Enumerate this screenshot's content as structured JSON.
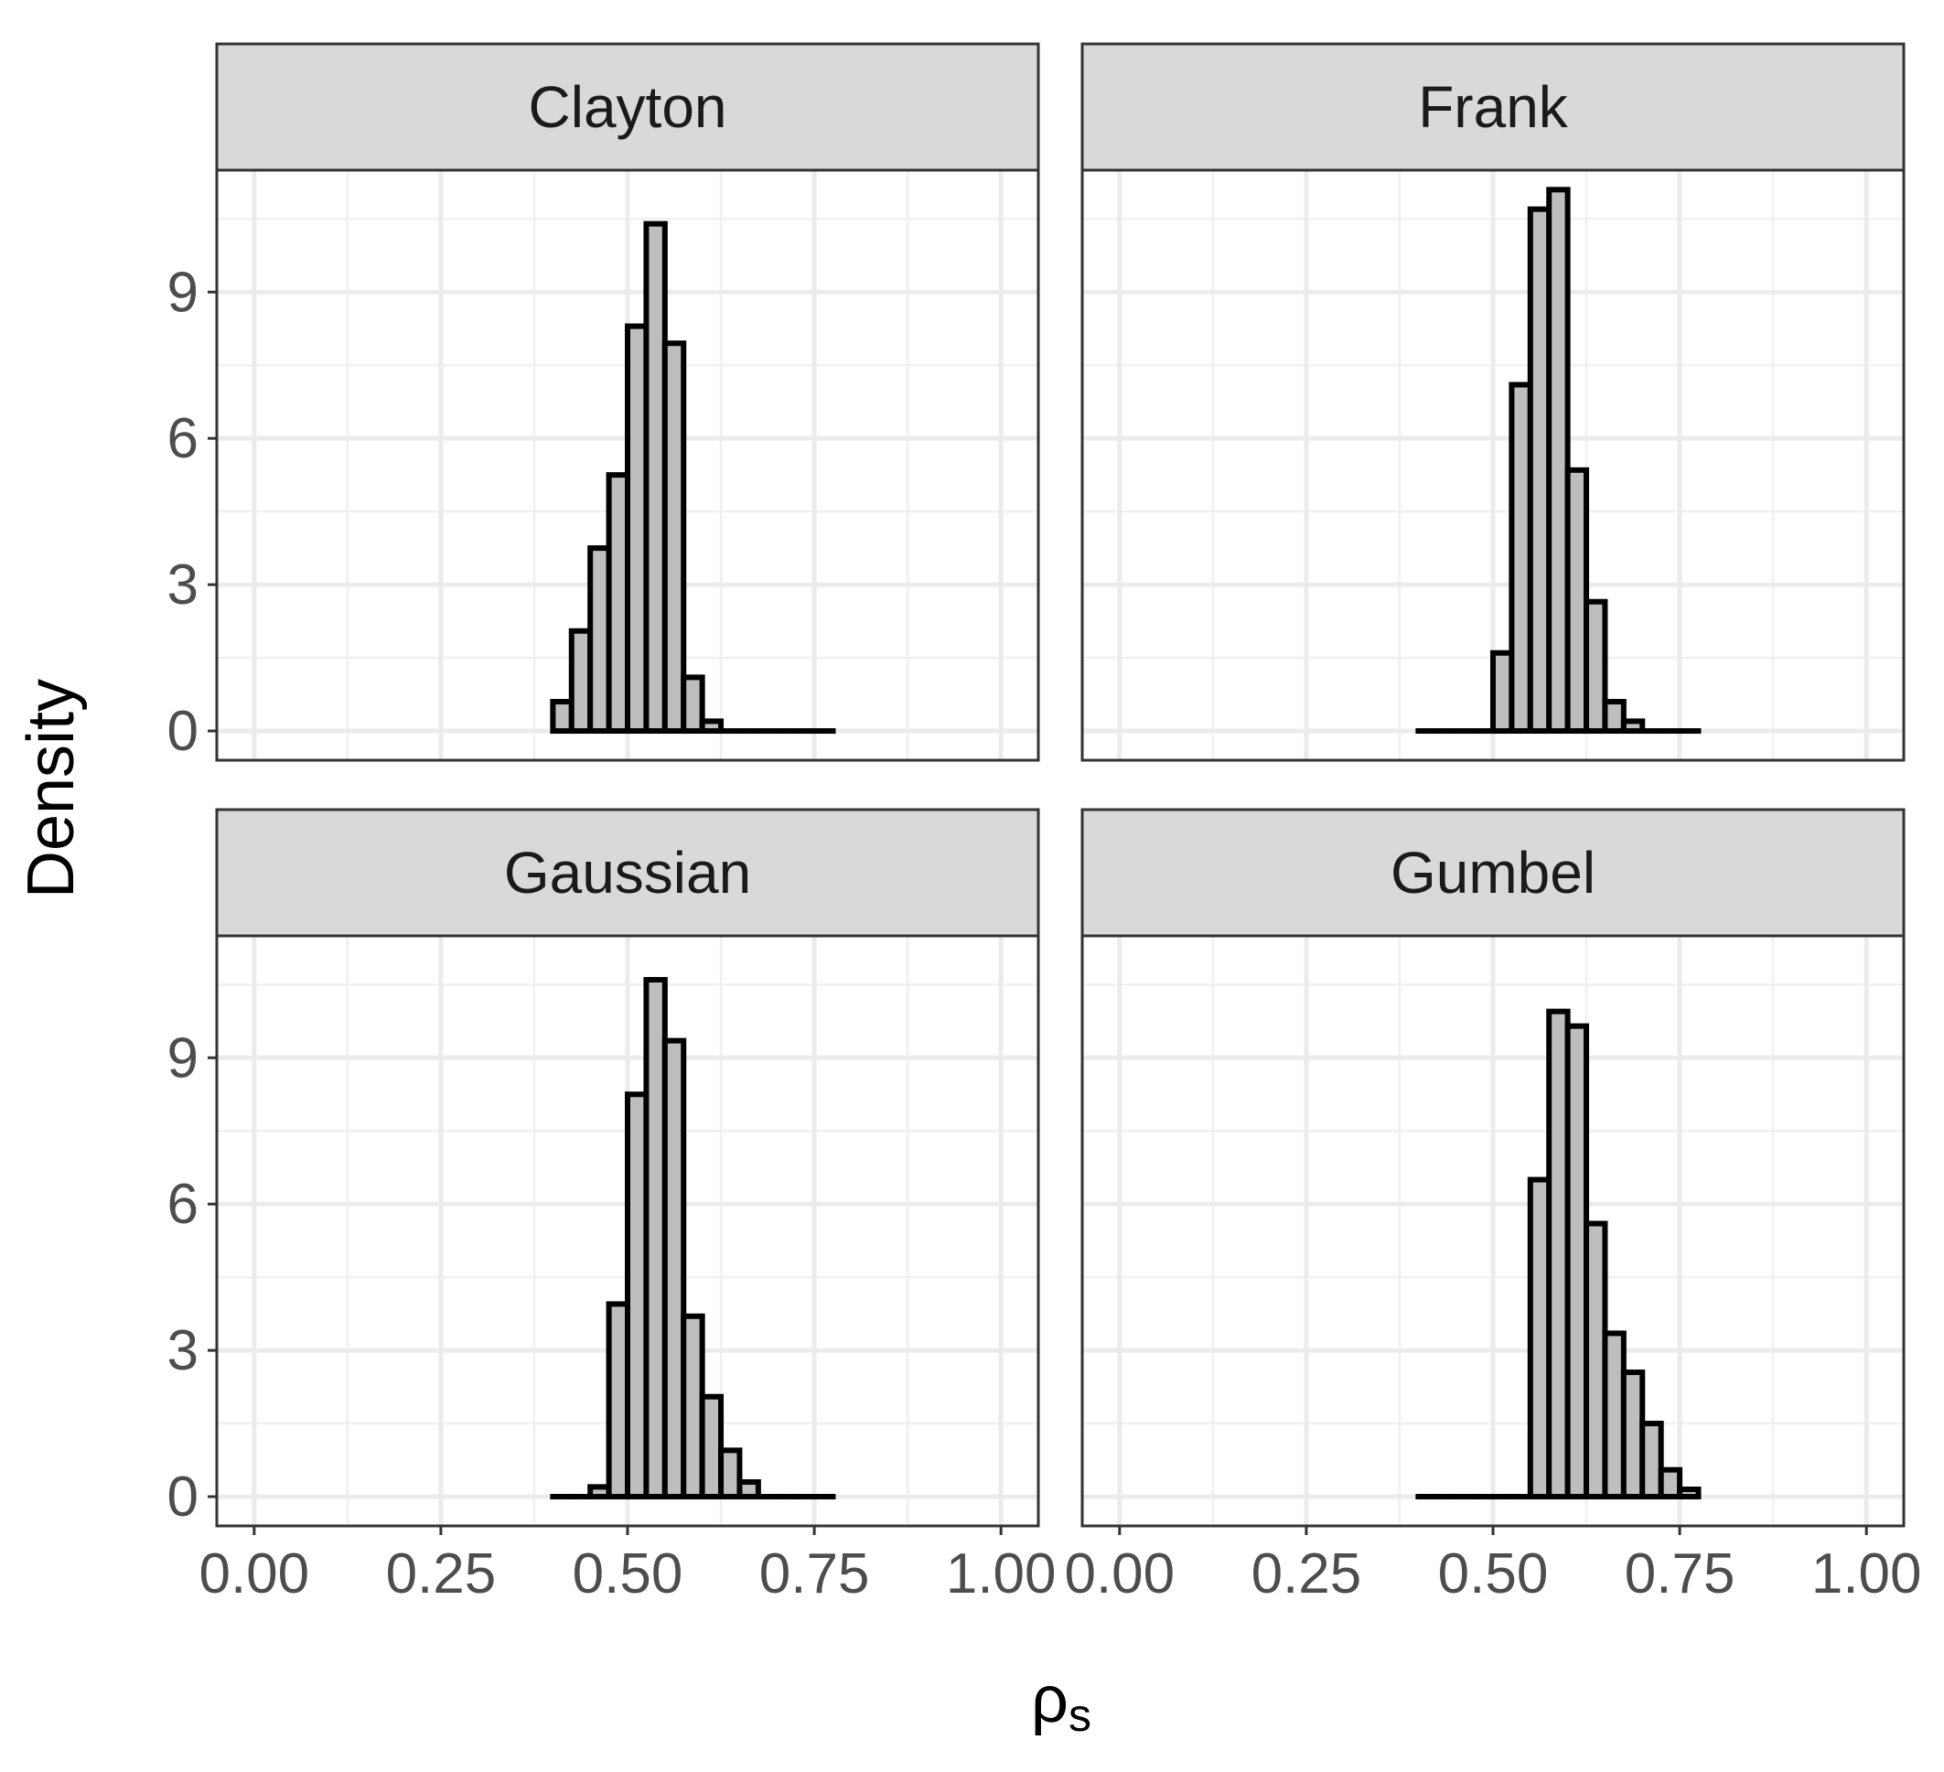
{
  "chart_data": {
    "type": "bar",
    "subtype": "faceted-histogram",
    "xlabel": "ρ",
    "xlabel_subscript": "s",
    "ylabel": "Density",
    "xlim": [
      -0.05,
      1.05
    ],
    "ylim": [
      -0.6,
      11.5
    ],
    "x_ticks": [
      0,
      0.25,
      0.5,
      0.75,
      1
    ],
    "x_tick_labels": [
      "0.00",
      "0.25",
      "0.50",
      "0.75",
      "1.00"
    ],
    "y_ticks": [
      0,
      3,
      6,
      9
    ],
    "y_tick_labels": [
      "0",
      "3",
      "6",
      "9"
    ],
    "grid": true,
    "bin_width": 0.025,
    "bin_start": 0.4,
    "fill_color": "#bebebe",
    "stroke_color": "#000000",
    "facets": [
      {
        "name": "Clayton",
        "values": [
          0.6,
          2.05,
          3.75,
          5.25,
          8.3,
          10.4,
          7.95,
          1.1,
          0.2,
          0,
          0,
          0,
          0,
          0,
          0
        ]
      },
      {
        "name": "Frank",
        "values": [
          0,
          0,
          0,
          0,
          1.6,
          7.1,
          10.7,
          11.1,
          5.35,
          2.65,
          0.6,
          0.2,
          0,
          0,
          0
        ]
      },
      {
        "name": "Gaussian",
        "values": [
          0,
          0,
          0.2,
          3.95,
          8.25,
          10.6,
          9.35,
          3.7,
          2.05,
          0.95,
          0.3,
          0,
          0,
          0,
          0
        ]
      },
      {
        "name": "Gumbel",
        "values": [
          0,
          0,
          0,
          0,
          0,
          0,
          6.5,
          9.95,
          9.65,
          5.6,
          3.35,
          2.55,
          1.5,
          0.55,
          0.15
        ]
      }
    ]
  }
}
